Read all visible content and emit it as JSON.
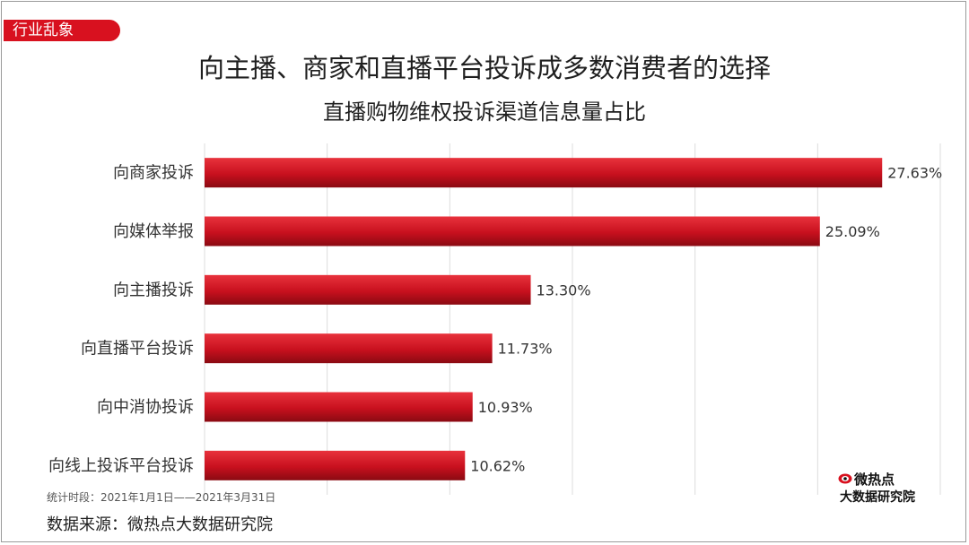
{
  "tag": "行业乱象",
  "chart_data": {
    "type": "bar",
    "orientation": "horizontal",
    "title": "向主播、商家和直播平台投诉成多数消费者的选择",
    "subtitle": "直播购物维权投诉渠道信息量占比",
    "categories": [
      "向商家投诉",
      "向媒体举报",
      "向主播投诉",
      "向直播平台投诉",
      "向中消协投诉",
      "向线上投诉平台投诉"
    ],
    "values": [
      27.63,
      25.09,
      13.3,
      11.73,
      10.93,
      10.62
    ],
    "value_labels": [
      "27.63%",
      "25.09%",
      "13.30%",
      "11.73%",
      "10.93%",
      "10.62%"
    ],
    "xlim": [
      0,
      30
    ],
    "grid": true,
    "bar_color": "#c8101e"
  },
  "note": "统计时段：2021年1月1日——2021年3月31日",
  "source": "数据来源：微热点大数据研究院",
  "logo": {
    "top": "微热点",
    "bottom": "大数据研究院",
    "icon": "weibo-eye-icon"
  }
}
